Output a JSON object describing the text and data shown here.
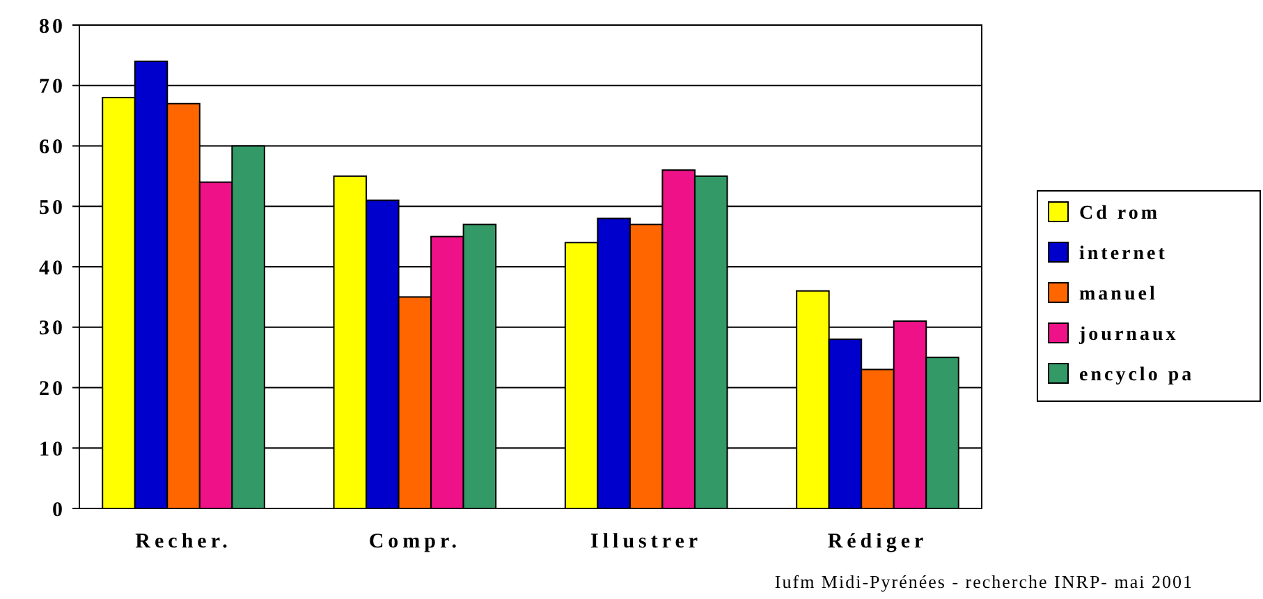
{
  "chart_data": {
    "type": "bar",
    "categories": [
      "Recher.",
      "Compr.",
      "Illustrer",
      "Rédiger"
    ],
    "series": [
      {
        "name": "Cd rom",
        "color": "#ffff00",
        "values": [
          68,
          55,
          44,
          36
        ]
      },
      {
        "name": "internet",
        "color": "#0000cc",
        "values": [
          74,
          51,
          48,
          28
        ]
      },
      {
        "name": "manuel",
        "color": "#ff6600",
        "values": [
          67,
          35,
          47,
          23
        ]
      },
      {
        "name": "journaux",
        "color": "#ee1188",
        "values": [
          54,
          45,
          56,
          31
        ]
      },
      {
        "name": "encyclo pa",
        "color": "#339966",
        "values": [
          60,
          47,
          55,
          25
        ]
      }
    ],
    "ylim": [
      0,
      80
    ],
    "yticks": [
      0,
      10,
      20,
      30,
      40,
      50,
      60,
      70,
      80
    ],
    "grid": "y",
    "legend": "right",
    "annotations": [
      "Iufm Midi-Pyrénées - recherche INRP- mai 2001"
    ]
  }
}
